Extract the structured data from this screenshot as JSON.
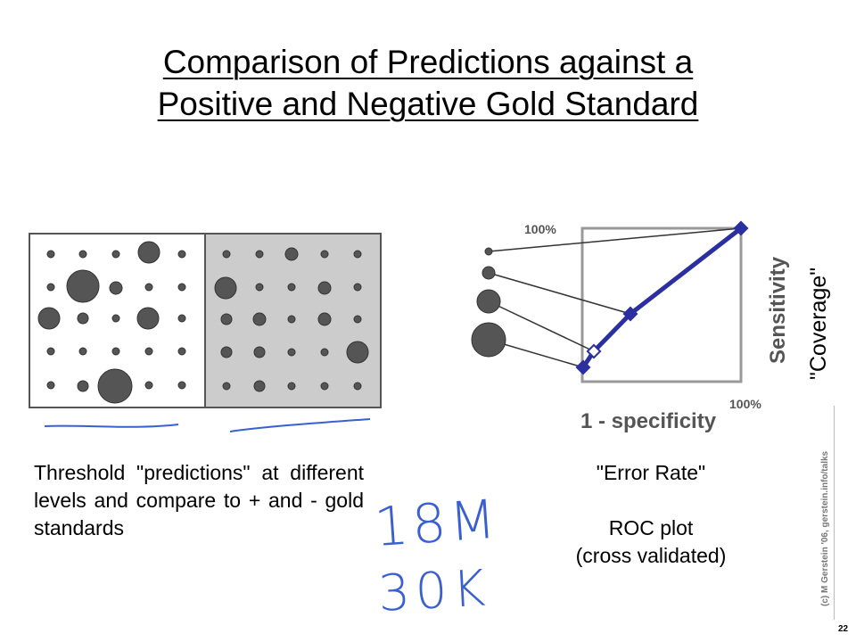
{
  "slide": {
    "title_line1": "Comparison of Predictions against a",
    "title_line2": "Positive and Negative Gold Standard",
    "caption_left": "Threshold \"predictions\" at different levels and compare to + and - gold standards",
    "caption_right_line1": "\"Error Rate\"",
    "caption_right_line2": "ROC plot",
    "caption_right_line3": "(cross validated)",
    "credit": "(c) M Gerstein '06, gerstein.info/talks",
    "page_number": "22"
  },
  "roc": {
    "label_100_top": "100%",
    "label_100_right": "100%",
    "xlabel": "1 - specificity",
    "ylabel": "Sensitivity",
    "coverage_label": "\"Coverage\""
  },
  "handwriting": {
    "line1": "18M",
    "line2": "30K"
  },
  "colors": {
    "roc_line": "#2b2fa0",
    "dot": "#555555",
    "negative_panel": "#cccccc"
  }
}
